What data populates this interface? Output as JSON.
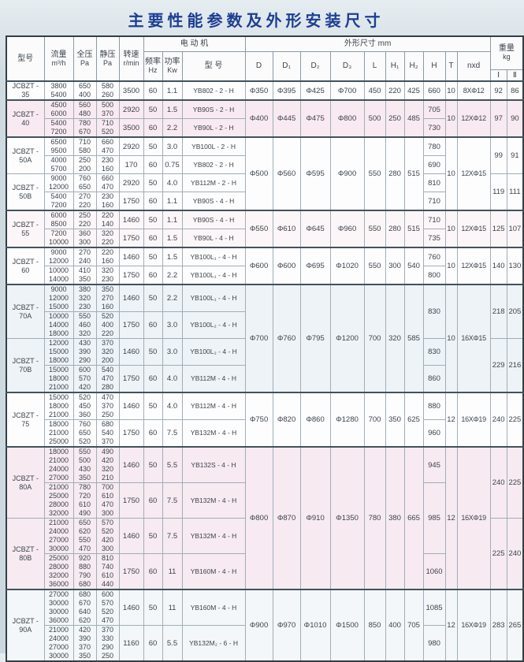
{
  "title": "主要性能参数及外形安装尺寸",
  "header": {
    "model": "型号",
    "flow": "流量",
    "flow_unit": "m³/h",
    "full_pressure": "全压",
    "full_pressure_unit": "Pa",
    "static_pressure": "静压",
    "static_pressure_unit": "Pa",
    "speed": "转速",
    "speed_unit": "r/min",
    "motor_group": "电 动 机",
    "freq": "频率",
    "freq_unit": "Hz",
    "power": "功率",
    "power_unit": "Kw",
    "motor_model": "型 号",
    "dims_group": "外形尺寸 mm",
    "dims": [
      "D",
      "D₁",
      "D₂",
      "D₃",
      "L",
      "H₁",
      "H₂",
      "H",
      "T",
      "nxd"
    ],
    "weight_group": "重量",
    "weight_unit": "kg",
    "weight_cols": [
      "Ⅰ",
      "Ⅱ"
    ]
  },
  "colors": {
    "title_blue": "#1d3e92",
    "pink_band": "#f8eaf0",
    "blue_band": "#eef3f7",
    "white_band": "#fdfdfe",
    "border_dark": "#42525c"
  },
  "dim_groups": [
    {
      "bg": "#fdfdfe",
      "d": "Φ350",
      "d1": "Φ395",
      "d2": "Φ425",
      "d3": "Φ700",
      "l": "450",
      "h1": "220",
      "h2": "425",
      "t": "10",
      "nxd": "8XΦ12",
      "h_cells": [
        {
          "v": "660",
          "span": 1
        }
      ],
      "groups": [
        {
          "model": "JCBZT -\n35",
          "w1": "92",
          "w2": "86",
          "subrows": [
            {
              "flow": [
                "3800",
                "5400"
              ],
              "full": [
                "650",
                "400"
              ],
              "stat": [
                "580",
                "260"
              ],
              "speed": "3500",
              "hz": "60",
              "kw": "1.1",
              "motor": "YB802 - 2 - H"
            }
          ]
        }
      ]
    },
    {
      "bg": "#f8eaf0",
      "d": "Φ400",
      "d1": "Φ445",
      "d2": "Φ475",
      "d3": "Φ800",
      "l": "500",
      "h1": "250",
      "h2": "485",
      "t": "10",
      "nxd": "12XΦ12",
      "h_cells": [
        {
          "v": "705",
          "span": 1
        },
        {
          "v": "730",
          "span": 1
        }
      ],
      "groups": [
        {
          "model": "JCBZT -\n40",
          "w1": "97",
          "w2": "90",
          "subrows": [
            {
              "flow": [
                "4500",
                "6000"
              ],
              "full": [
                "560",
                "480"
              ],
              "stat": [
                "500",
                "370"
              ],
              "speed": "2920",
              "hz": "50",
              "kw": "1.5",
              "motor": "YB90S - 2 - H"
            },
            {
              "flow": [
                "5400",
                "7200"
              ],
              "full": [
                "780",
                "670"
              ],
              "stat": [
                "710",
                "520"
              ],
              "speed": "3500",
              "hz": "60",
              "kw": "2.2",
              "motor": "YB90L - 2 - H"
            }
          ]
        }
      ]
    },
    {
      "bg": "#fdfdfe",
      "d": "Φ500",
      "d1": "Φ560",
      "d2": "Φ595",
      "d3": "Φ900",
      "l": "550",
      "h1": "280",
      "h2": "515",
      "t": "10",
      "nxd": "12XΦ15",
      "h_cells": [
        {
          "v": "780",
          "span": 1
        },
        {
          "v": "690",
          "span": 1
        },
        {
          "v": "810",
          "span": 1
        },
        {
          "v": "710",
          "span": 1
        }
      ],
      "groups": [
        {
          "model": "JCBZT -\n50A",
          "w1": "99",
          "w2": "91",
          "subrows": [
            {
              "flow": [
                "6500",
                "9500"
              ],
              "full": [
                "710",
                "580"
              ],
              "stat": [
                "660",
                "470"
              ],
              "speed": "2920",
              "hz": "50",
              "kw": "3.0",
              "motor": "YB100L - 2 - H"
            },
            {
              "flow": [
                "4000",
                "5700"
              ],
              "full": [
                "250",
                "200"
              ],
              "stat": [
                "230",
                "160"
              ],
              "speed": "170",
              "hz": "60",
              "kw": "0.75",
              "motor": "YB802 - 2 - H"
            }
          ]
        },
        {
          "model": "JCBZT -\n50B",
          "w1": "119",
          "w2": "111",
          "subrows": [
            {
              "flow": [
                "9000",
                "12000"
              ],
              "full": [
                "760",
                "650"
              ],
              "stat": [
                "660",
                "470"
              ],
              "speed": "2920",
              "hz": "50",
              "kw": "4.0",
              "motor": "YB112M - 2 - H"
            },
            {
              "flow": [
                "5400",
                "7200"
              ],
              "full": [
                "270",
                "220"
              ],
              "stat": [
                "230",
                "160"
              ],
              "speed": "1750",
              "hz": "60",
              "kw": "1.1",
              "motor": "YB90S - 4 - H"
            }
          ]
        }
      ]
    },
    {
      "bg": "#fdf6f8",
      "d": "Φ550",
      "d1": "Φ610",
      "d2": "Φ645",
      "d3": "Φ960",
      "l": "550",
      "h1": "280",
      "h2": "515",
      "t": "10",
      "nxd": "12XΦ15",
      "h_cells": [
        {
          "v": "710",
          "span": 1
        },
        {
          "v": "735",
          "span": 1
        }
      ],
      "groups": [
        {
          "model": "JCBZT -\n55",
          "w1": "125",
          "w2": "107",
          "subrows": [
            {
              "flow": [
                "6000",
                "8500"
              ],
              "full": [
                "250",
                "220"
              ],
              "stat": [
                "220",
                "140"
              ],
              "speed": "1460",
              "hz": "50",
              "kw": "1.1",
              "motor": "YB90S - 4 - H"
            },
            {
              "flow": [
                "7200",
                "10000"
              ],
              "full": [
                "360",
                "300"
              ],
              "stat": [
                "320",
                "220"
              ],
              "speed": "1750",
              "hz": "60",
              "kw": "1.5",
              "motor": "YB90L - 4 - H"
            }
          ]
        }
      ]
    },
    {
      "bg": "#fdfdfe",
      "d": "Φ600",
      "d1": "Φ600",
      "d2": "Φ695",
      "d3": "Φ1020",
      "l": "550",
      "h1": "300",
      "h2": "540",
      "t": "10",
      "nxd": "12XΦ15",
      "h_cells": [
        {
          "v": "760",
          "span": 1
        },
        {
          "v": "800",
          "span": 1
        }
      ],
      "groups": [
        {
          "model": "JCBZT -\n60",
          "w1": "140",
          "w2": "130",
          "subrows": [
            {
              "flow": [
                "9000",
                "12000"
              ],
              "full": [
                "270",
                "240"
              ],
              "stat": [
                "220",
                "160"
              ],
              "speed": "1460",
              "hz": "50",
              "kw": "1.5",
              "motor": "YB100L₁ - 4 - H"
            },
            {
              "flow": [
                "10000",
                "14000"
              ],
              "full": [
                "410",
                "350"
              ],
              "stat": [
                "320",
                "230"
              ],
              "speed": "1750",
              "hz": "60",
              "kw": "2.2",
              "motor": "YB100L₁ - 4 - H"
            }
          ]
        }
      ]
    },
    {
      "bg": "#eef3f7",
      "d": "Φ700",
      "d1": "Φ760",
      "d2": "Φ795",
      "d3": "Φ1200",
      "l": "700",
      "h1": "320",
      "h2": "585",
      "t": "10",
      "nxd": "16XΦ15",
      "h_cells": [
        {
          "v": "830",
          "span": 2
        },
        {
          "v": "830",
          "span": 1
        },
        {
          "v": "860",
          "span": 1
        }
      ],
      "groups": [
        {
          "model": "JCBZT -\n70A",
          "w1": "218",
          "w2": "205",
          "subrows": [
            {
              "flow": [
                "9000",
                "12000",
                "15000"
              ],
              "full": [
                "380",
                "320",
                "230"
              ],
              "stat": [
                "350",
                "270",
                "160"
              ],
              "speed": "1460",
              "hz": "50",
              "kw": "2.2",
              "motor": "YB100L₁ - 4 - H"
            },
            {
              "flow": [
                "10000",
                "14000",
                "18000"
              ],
              "full": [
                "550",
                "460",
                "320"
              ],
              "stat": [
                "520",
                "400",
                "220"
              ],
              "speed": "1750",
              "hz": "60",
              "kw": "3.0",
              "motor": "YB100L₂ - 4 - H"
            }
          ]
        },
        {
          "model": "JCBZT -\n70B",
          "w1": "229",
          "w2": "216",
          "subrows": [
            {
              "flow": [
                "12000",
                "15000",
                "18000"
              ],
              "full": [
                "430",
                "390",
                "290"
              ],
              "stat": [
                "370",
                "320",
                "200"
              ],
              "speed": "1460",
              "hz": "50",
              "kw": "3.0",
              "motor": "YB100L₂ - 4 - H"
            },
            {
              "flow": [
                "15000",
                "18000",
                "21000"
              ],
              "full": [
                "600",
                "570",
                "420"
              ],
              "stat": [
                "540",
                "470",
                "280"
              ],
              "speed": "1750",
              "hz": "60",
              "kw": "4.0",
              "motor": "YB112M - 4 - H"
            }
          ]
        }
      ]
    },
    {
      "bg": "#fdfdfe",
      "d": "Φ750",
      "d1": "Φ820",
      "d2": "Φ860",
      "d3": "Φ1280",
      "l": "700",
      "h1": "350",
      "h2": "625",
      "t": "12",
      "nxd": "16XΦ19",
      "h_cells": [
        {
          "v": "880",
          "span": 1
        },
        {
          "v": "960",
          "span": 1
        }
      ],
      "groups": [
        {
          "model": "JCBZT -\n75",
          "w1": "240",
          "w2": "225",
          "subrows": [
            {
              "flow": [
                "15000",
                "18000",
                "21000"
              ],
              "full": [
                "520",
                "450",
                "360"
              ],
              "stat": [
                "470",
                "370",
                "250"
              ],
              "speed": "1460",
              "hz": "50",
              "kw": "4.0",
              "motor": "YB112M - 4 - H"
            },
            {
              "flow": [
                "18000",
                "21000",
                "25000"
              ],
              "full": [
                "760",
                "650",
                "520"
              ],
              "stat": [
                "680",
                "540",
                "370"
              ],
              "speed": "1750",
              "hz": "60",
              "kw": "7.5",
              "motor": "YB132M - 4 - H"
            }
          ]
        }
      ]
    },
    {
      "bg": "#f7eaf1",
      "d": "Φ800",
      "d1": "Φ870",
      "d2": "Φ910",
      "d3": "Φ1350",
      "l": "780",
      "h1": "380",
      "h2": "665",
      "t": "12",
      "nxd": "16XΦ19",
      "h_cells": [
        {
          "v": "945",
          "span": 1
        },
        {
          "v": "985",
          "span": 2
        },
        {
          "v": "1060",
          "span": 1
        }
      ],
      "groups": [
        {
          "model": "JCBZT -\n80A",
          "w1": "240",
          "w2": "225",
          "subrows": [
            {
              "flow": [
                "18000",
                "21000",
                "24000",
                "27000"
              ],
              "full": [
                "550",
                "500",
                "430",
                "350"
              ],
              "stat": [
                "490",
                "420",
                "320",
                "210"
              ],
              "speed": "1460",
              "hz": "50",
              "kw": "5.5",
              "motor": "YB132S - 4 - H"
            },
            {
              "flow": [
                "21000",
                "25000",
                "28000",
                "32000"
              ],
              "full": [
                "780",
                "720",
                "610",
                "490"
              ],
              "stat": [
                "700",
                "610",
                "470",
                "300"
              ],
              "speed": "1750",
              "hz": "60",
              "kw": "7.5",
              "motor": "YB132M - 4 - H"
            }
          ]
        },
        {
          "model": "JCBZT -\n80B",
          "w1": "225",
          "w2": "240",
          "subrows": [
            {
              "flow": [
                "21000",
                "24000",
                "27000",
                "30000"
              ],
              "full": [
                "650",
                "620",
                "550",
                "470"
              ],
              "stat": [
                "570",
                "520",
                "420",
                "300"
              ],
              "speed": "1460",
              "hz": "50",
              "kw": "7.5",
              "motor": "YB132M - 4 - H"
            },
            {
              "flow": [
                "25000",
                "28000",
                "32000",
                "36000"
              ],
              "full": [
                "920",
                "880",
                "790",
                "680"
              ],
              "stat": [
                "810",
                "740",
                "610",
                "440"
              ],
              "speed": "1750",
              "hz": "60",
              "kw": "11",
              "motor": "YB160M - 4 - H"
            }
          ]
        }
      ]
    },
    {
      "bg": "#f3f7f9",
      "d": "Φ900",
      "d1": "Φ970",
      "d2": "Φ1010",
      "d3": "Φ1500",
      "l": "850",
      "h1": "400",
      "h2": "705",
      "t": "12",
      "nxd": "16XΦ19",
      "h_cells": [
        {
          "v": "1085",
          "span": 1
        },
        {
          "v": "980",
          "span": 1
        }
      ],
      "groups": [
        {
          "model": "JCBZT -\n90A",
          "w1": "283",
          "w2": "265",
          "subrows": [
            {
              "flow": [
                "27000",
                "30000",
                "30000",
                "36000"
              ],
              "full": [
                "680",
                "670",
                "640",
                "620"
              ],
              "stat": [
                "600",
                "570",
                "520",
                "470"
              ],
              "speed": "1460",
              "hz": "50",
              "kw": "11",
              "motor": "YB160M - 4 - H"
            },
            {
              "flow": [
                "21000",
                "24000",
                "27000",
                "30000"
              ],
              "full": [
                "420",
                "390",
                "370",
                "350"
              ],
              "stat": [
                "370",
                "330",
                "290",
                "250"
              ],
              "speed": "1160",
              "hz": "60",
              "kw": "5.5",
              "motor": "YB132M₂ - 6 - H"
            }
          ]
        }
      ]
    }
  ]
}
